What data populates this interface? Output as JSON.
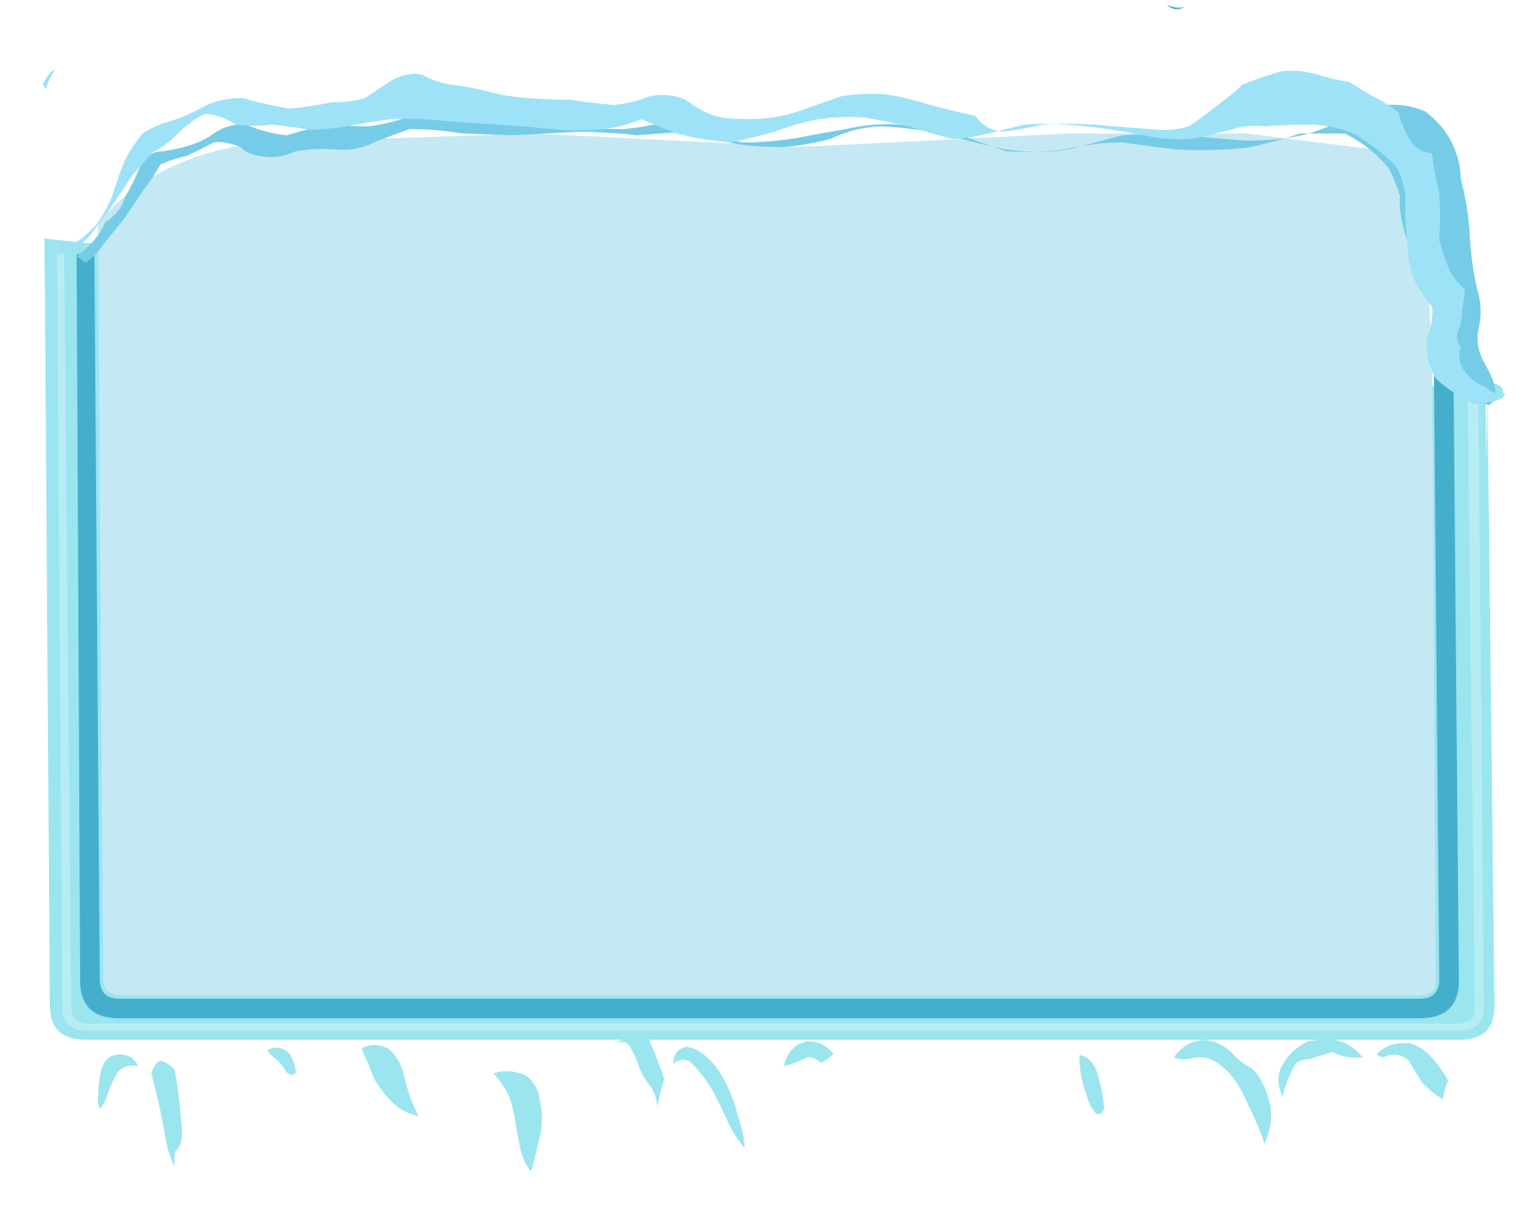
{
  "panel": {
    "style": "frozen-ice-dialog-frame",
    "text": ""
  },
  "colors": {
    "background": "#ffffff",
    "outer_frame": "#9be5ef",
    "frame_highlight": "#b6edf4",
    "inner_border": "#45aecd",
    "panel_fill": "#c5e9f4",
    "snow_light": "#9ee2f8",
    "snow_mid": "#76cce6",
    "icicle": "#9be5ef"
  }
}
